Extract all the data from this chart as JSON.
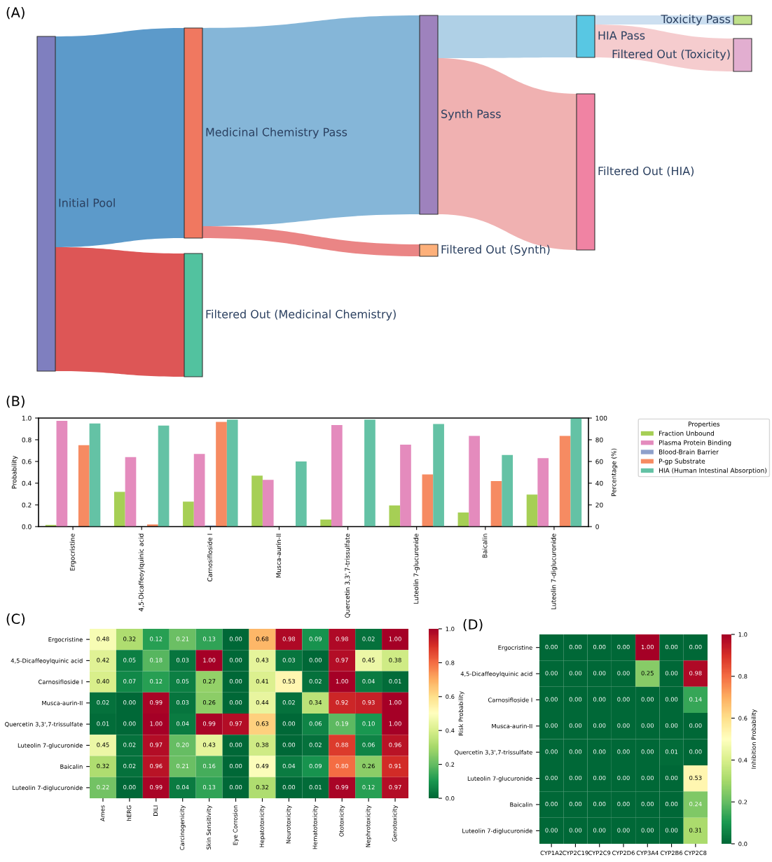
{
  "chart_data": [
    {
      "type": "other",
      "title": "(A)",
      "categories": [
        "Initial Pool",
        "Medicinal Chemistry Pass",
        "Filtered Out (Medicinal Chemistry)",
        "Synth Pass",
        "Filtered Out (Synth)",
        "HIA Pass",
        "Filtered Out (HIA)",
        "Toxicity Pass",
        "Filtered Out (Toxicity)"
      ],
      "colors": [
        "#7f7fbf",
        "#f07860",
        "#52c29f",
        "#9e82bd",
        "#fdb07a",
        "#58c7e3",
        "#f083a3",
        "#bfe08a",
        "#e2aed0"
      ]
    },
    {
      "type": "bar",
      "title": "(B)",
      "ylabel": "Probability",
      "y2label": "Percentage (%)",
      "legend_title": "Properties",
      "legend": "right",
      "grid": false,
      "categories": [
        "Ergocristine",
        "4,5-Dicaffeoylquinic acid",
        "Carnosifloside I",
        "Musca-aurin-II",
        "Quercetin 3,3',7-trissulfate",
        "Luteolin 7-glucuronide",
        "Baicalin",
        "Luteolin 7-diglucuronide"
      ],
      "ylim": [
        0,
        1.0
      ],
      "yticks": [
        {
          "value": 0,
          "label": "0.0"
        },
        {
          "value": 0.2,
          "label": "0.2"
        },
        {
          "value": 0.4,
          "label": "0.4"
        },
        {
          "value": 0.6,
          "label": "0.6"
        },
        {
          "value": 0.8,
          "label": "0.8"
        },
        {
          "value": 1.0,
          "label": "1.0"
        }
      ],
      "y2lim": [
        0,
        100
      ],
      "y2ticks": [
        0,
        20,
        40,
        60,
        80,
        100
      ],
      "series": [
        {
          "name": "Fraction Unbound",
          "color": "#a6cf55",
          "values": [
            0.015,
            0.32,
            0.23,
            0.47,
            0.065,
            0.195,
            0.13,
            0.295
          ]
        },
        {
          "name": "Plasma Protein Binding",
          "color": "#e48bbd",
          "axis": "y2",
          "values": [
            97.5,
            64,
            67,
            43,
            93.5,
            75.5,
            83.5,
            63
          ]
        },
        {
          "name": "Blood-Brain Barrier",
          "color": "#8ea0cb",
          "values": [
            0,
            0,
            0.01,
            0,
            0,
            0,
            0,
            0
          ]
        },
        {
          "name": "P-gp Substrate",
          "color": "#f68b62",
          "values": [
            0.75,
            0.02,
            0.965,
            0,
            0,
            0.48,
            0.42,
            0.835
          ]
        },
        {
          "name": "HIA (Human Intestinal Absorption)",
          "color": "#64c2a5",
          "axis": "y2",
          "values": [
            95,
            93,
            98.5,
            60,
            98.5,
            94.5,
            66,
            100
          ]
        }
      ]
    },
    {
      "type": "heatmap",
      "title": "(C)",
      "clabel": "Risk Probability",
      "categories": [
        "Ames",
        "hERG",
        "DILI",
        "Carcinogenicity",
        "Skin Sensitivity",
        "Eye Corrosion",
        "Hepatotoxicity",
        "Neurotoxicity",
        "Hematotoxicity",
        "Ototoxicity",
        "Nephrotoxicity",
        "Genotoxicity"
      ],
      "y_categories": [
        "Ergocristine",
        "4,5-Dicaffeoylquinic acid",
        "Carnosifloside I",
        "Musca-aurin-II",
        "Quercetin 3,3',7-trissulfate",
        "Luteolin 7-glucuronide",
        "Baicalin",
        "Luteolin 7-diglucuronide"
      ],
      "clim": [
        0,
        1.0
      ],
      "cticks": [
        {
          "value": 0,
          "label": "0.0"
        },
        {
          "value": 0.2,
          "label": "0.2"
        },
        {
          "value": 0.4,
          "label": "0.4"
        },
        {
          "value": 0.6,
          "label": "0.6"
        },
        {
          "value": 0.8,
          "label": "0.8"
        },
        {
          "value": 1.0,
          "label": "1.0"
        }
      ],
      "cells": [
        [
          0.48,
          0.32,
          0.12,
          0.21,
          0.13,
          0,
          0.68,
          0.98,
          0.09,
          0.98,
          0.02,
          1
        ],
        [
          0.42,
          0.05,
          0.18,
          0.03,
          1,
          0,
          0.43,
          0.03,
          0,
          0.97,
          0.45,
          0.38
        ],
        [
          0.4,
          0.07,
          0.12,
          0.05,
          0.27,
          0,
          0.41,
          0.53,
          0.02,
          1,
          0.04,
          0.01
        ],
        [
          0.02,
          0,
          0.99,
          0.03,
          0.26,
          0,
          0.44,
          0.02,
          0.34,
          0.92,
          0.93,
          1
        ],
        [
          0.01,
          0,
          1,
          0.04,
          0.99,
          0.97,
          0.63,
          0,
          0.06,
          0.19,
          0.1,
          1
        ],
        [
          0.45,
          0.02,
          0.97,
          0.2,
          0.43,
          0,
          0.38,
          0,
          0.02,
          0.88,
          0.06,
          0.96
        ],
        [
          0.32,
          0.02,
          0.96,
          0.21,
          0.16,
          0,
          0.49,
          0.04,
          0.09,
          0.8,
          0.26,
          0.91
        ],
        [
          0.22,
          0,
          0.99,
          0.04,
          0.13,
          0,
          0.32,
          0,
          0.01,
          0.99,
          0.12,
          0.97
        ]
      ],
      "cell_labels": [
        [
          "0.48",
          "0.32",
          "0.12",
          "0.21",
          "0.13",
          "0.00",
          "0.68",
          "0.98",
          "0.09",
          "0.98",
          "0.02",
          "1.00"
        ],
        [
          "0.42",
          "0.05",
          "0.18",
          "0.03",
          "1.00",
          "0.00",
          "0.43",
          "0.03",
          "0.00",
          "0.97",
          "0.45",
          "0.38"
        ],
        [
          "0.40",
          "0.07",
          "0.12",
          "0.05",
          "0.27",
          "0.00",
          "0.41",
          "0.53",
          "0.02",
          "1.00",
          "0.04",
          "0.01"
        ],
        [
          "0.02",
          "0.00",
          "0.99",
          "0.03",
          "0.26",
          "0.00",
          "0.44",
          "0.02",
          "0.34",
          "0.92",
          "0.93",
          "1.00"
        ],
        [
          "0.01",
          "0.00",
          "1.00",
          "0.04",
          "0.99",
          "0.97",
          "0.63",
          "0.00",
          "0.06",
          "0.19",
          "0.10",
          "1.00"
        ],
        [
          "0.45",
          "0.02",
          "0.97",
          "0.20",
          "0.43",
          "0.00",
          "0.38",
          "0.00",
          "0.02",
          "0.88",
          "0.06",
          "0.96"
        ],
        [
          "0.32",
          "0.02",
          "0.96",
          "0.21",
          "0.16",
          "0.00",
          "0.49",
          "0.04",
          "0.09",
          "0.80",
          "0.26",
          "0.91"
        ],
        [
          "0.22",
          "0.00",
          "0.99",
          "0.04",
          "0.13",
          "0.00",
          "0.32",
          "0.00",
          "0.01",
          "0.99",
          "0.12",
          "0.97"
        ]
      ]
    },
    {
      "type": "heatmap",
      "title": "(D)",
      "clabel": "Inhibition Probability",
      "categories": [
        "CYP1A2",
        "CYP2C19",
        "CYP2C9",
        "CYP2D6",
        "CYP3A4",
        "CYP2B6",
        "CYP2C8"
      ],
      "y_categories": [
        "Ergocristine",
        "4,5-Dicaffeoylquinic acid",
        "Carnosifloside I",
        "Musca-aurin-II",
        "Quercetin 3,3',7-trissulfate",
        "Luteolin 7-glucuronide",
        "Baicalin",
        "Luteolin 7-diglucuronide"
      ],
      "clim": [
        0,
        1.0
      ],
      "cticks": [
        {
          "value": 0,
          "label": "0.0"
        },
        {
          "value": 0.2,
          "label": "0.2"
        },
        {
          "value": 0.4,
          "label": "0.4"
        },
        {
          "value": 0.6,
          "label": "0.6"
        },
        {
          "value": 0.8,
          "label": "0.8"
        },
        {
          "value": 1.0,
          "label": "1.0"
        }
      ],
      "cells": [
        [
          0,
          0,
          0,
          0,
          1,
          0,
          0
        ],
        [
          0,
          0,
          0,
          0,
          0.25,
          0,
          0.98
        ],
        [
          0,
          0,
          0,
          0,
          0,
          0,
          0.14
        ],
        [
          0,
          0,
          0,
          0,
          0,
          0,
          0
        ],
        [
          0,
          0,
          0,
          0,
          0,
          0.01,
          0
        ],
        [
          0,
          0,
          0,
          0,
          0,
          0,
          0.53
        ],
        [
          0,
          0,
          0,
          0,
          0,
          0,
          0.24
        ],
        [
          0,
          0,
          0,
          0,
          0,
          0,
          0.31
        ]
      ],
      "cell_labels": [
        [
          "0.00",
          "0.00",
          "0.00",
          "0.00",
          "1.00",
          "0.00",
          "0.00"
        ],
        [
          "0.00",
          "0.00",
          "0.00",
          "0.00",
          "0.25",
          "0.00",
          "0.98"
        ],
        [
          "0.00",
          "0.00",
          "0.00",
          "0.00",
          "0.00",
          "0.00",
          "0.14"
        ],
        [
          "0.00",
          "0.00",
          "0.00",
          "0.00",
          "0.00",
          "0.00",
          "0.00"
        ],
        [
          "0.00",
          "0.00",
          "0.00",
          "0.00",
          "0.00",
          "0.01",
          "0.00"
        ],
        [
          "0.00",
          "0.00",
          "0.00",
          "0.00",
          "0.00",
          "0.00",
          "0.53"
        ],
        [
          "0.00",
          "0.00",
          "0.00",
          "0.00",
          "0.00",
          "0.00",
          "0.24"
        ],
        [
          "0.00",
          "0.00",
          "0.00",
          "0.00",
          "0.00",
          "0.00",
          "0.31"
        ]
      ]
    }
  ]
}
